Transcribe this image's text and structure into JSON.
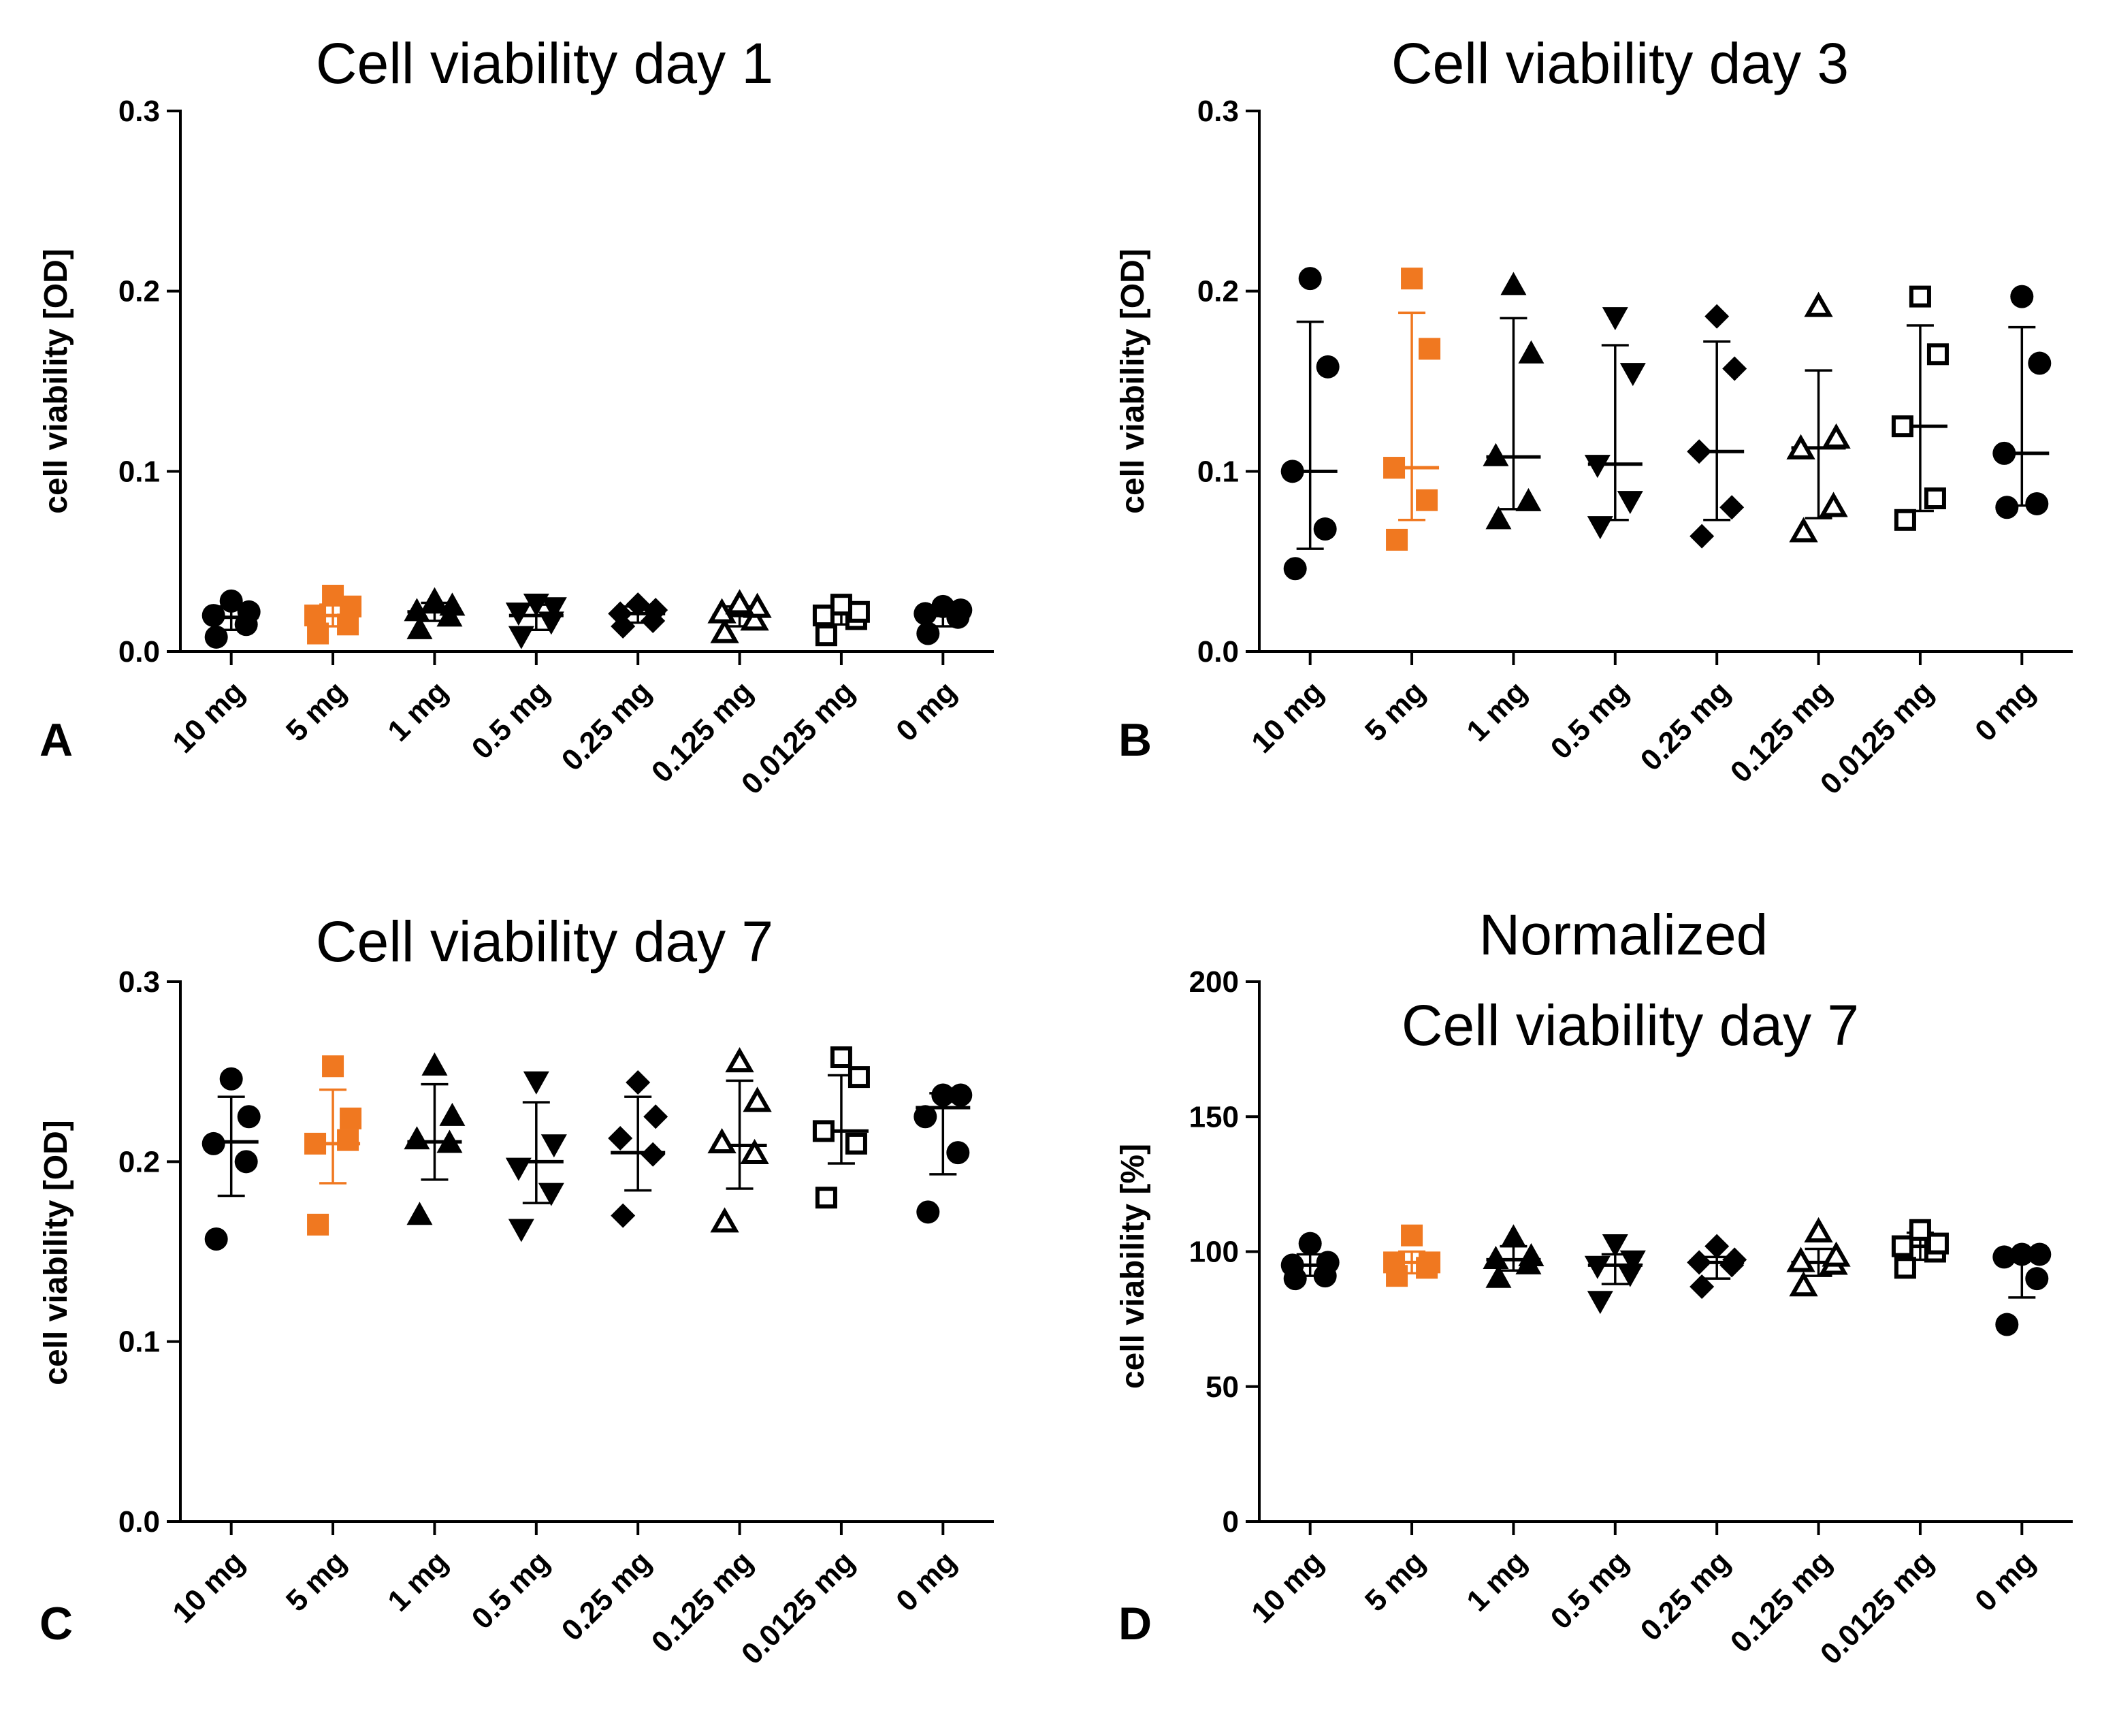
{
  "figure": {
    "colors": {
      "default": "#000000",
      "highlight": "#f07820"
    },
    "highlight_category": "5 mg"
  },
  "chart_data": [
    {
      "id": "A",
      "type": "scatter",
      "panel_label": "A",
      "title": "Cell viability day 1",
      "ylabel": "cell viability [OD]",
      "xlabel": "",
      "ylim": [
        0,
        0.3
      ],
      "yticks": [
        "0.0",
        "0.1",
        "0.2",
        "0.3"
      ],
      "ytick_values": [
        0,
        0.1,
        0.2,
        0.3
      ],
      "categories": [
        "10 mg",
        "5 mg",
        "1 mg",
        "0.5 mg",
        "0.25 mg",
        "0.125 mg",
        "0.0125 mg",
        "0 mg"
      ],
      "markers": [
        "circle",
        "square",
        "triangle-up",
        "triangle-down",
        "diamond",
        "triangle-up-open",
        "square-open",
        "circle"
      ],
      "series": [
        {
          "name": "10 mg",
          "points": [
            0.008,
            0.015,
            0.02,
            0.022,
            0.028
          ],
          "mean": 0.019,
          "err_low": 0.012,
          "err_high": 0.025
        },
        {
          "name": "5 mg",
          "points": [
            0.01,
            0.015,
            0.02,
            0.025,
            0.031
          ],
          "mean": 0.02,
          "err_low": 0.014,
          "err_high": 0.026
        },
        {
          "name": "1 mg",
          "points": [
            0.012,
            0.019,
            0.022,
            0.025,
            0.028
          ],
          "mean": 0.022,
          "err_low": 0.017,
          "err_high": 0.027
        },
        {
          "name": "0.5 mg",
          "points": [
            0.009,
            0.017,
            0.022,
            0.025,
            0.027
          ],
          "mean": 0.02,
          "err_low": 0.012,
          "err_high": 0.026
        },
        {
          "name": "0.25 mg",
          "points": [
            0.014,
            0.017,
            0.021,
            0.023,
            0.026
          ],
          "mean": 0.021,
          "err_low": 0.016,
          "err_high": 0.025
        },
        {
          "name": "0.125 mg",
          "points": [
            0.01,
            0.017,
            0.021,
            0.024,
            0.026
          ],
          "mean": 0.02,
          "err_low": 0.014,
          "err_high": 0.025
        },
        {
          "name": "0.0125 mg",
          "points": [
            0.009,
            0.018,
            0.02,
            0.022,
            0.026
          ],
          "mean": 0.021,
          "err_low": 0.015,
          "err_high": 0.025
        },
        {
          "name": "0 mg",
          "points": [
            0.01,
            0.019,
            0.021,
            0.023,
            0.025
          ],
          "mean": 0.02,
          "err_low": 0.014,
          "err_high": 0.025
        }
      ]
    },
    {
      "id": "B",
      "type": "scatter",
      "panel_label": "B",
      "title": "Cell viability day 3",
      "ylabel": "cell viability [OD]",
      "xlabel": "",
      "ylim": [
        0,
        0.3
      ],
      "yticks": [
        "0.0",
        "0.1",
        "0.2",
        "0.3"
      ],
      "ytick_values": [
        0,
        0.1,
        0.2,
        0.3
      ],
      "categories": [
        "10 mg",
        "5 mg",
        "1 mg",
        "0.5 mg",
        "0.25 mg",
        "0.125 mg",
        "0.0125 mg",
        "0 mg"
      ],
      "markers": [
        "circle",
        "square",
        "triangle-up",
        "triangle-down",
        "diamond",
        "triangle-up-open",
        "square-open",
        "circle"
      ],
      "series": [
        {
          "name": "10 mg",
          "points": [
            0.046,
            0.068,
            0.1,
            0.158,
            0.207
          ],
          "mean": 0.1,
          "err_low": 0.057,
          "err_high": 0.183
        },
        {
          "name": "5 mg",
          "points": [
            0.062,
            0.084,
            0.102,
            0.168,
            0.207
          ],
          "mean": 0.102,
          "err_low": 0.073,
          "err_high": 0.188
        },
        {
          "name": "1 mg",
          "points": [
            0.073,
            0.083,
            0.108,
            0.165,
            0.203
          ],
          "mean": 0.108,
          "err_low": 0.079,
          "err_high": 0.185
        },
        {
          "name": "0.5 mg",
          "points": [
            0.07,
            0.084,
            0.104,
            0.155,
            0.186
          ],
          "mean": 0.104,
          "err_low": 0.073,
          "err_high": 0.17
        },
        {
          "name": "0.25 mg",
          "points": [
            0.064,
            0.08,
            0.111,
            0.157,
            0.186
          ],
          "mean": 0.111,
          "err_low": 0.073,
          "err_high": 0.172
        },
        {
          "name": "0.125 mg",
          "points": [
            0.066,
            0.08,
            0.112,
            0.118,
            0.191
          ],
          "mean": 0.113,
          "err_low": 0.074,
          "err_high": 0.156
        },
        {
          "name": "0.0125 mg",
          "points": [
            0.073,
            0.085,
            0.125,
            0.165,
            0.197
          ],
          "mean": 0.125,
          "err_low": 0.078,
          "err_high": 0.181
        },
        {
          "name": "0 mg",
          "points": [
            0.08,
            0.082,
            0.11,
            0.16,
            0.197
          ],
          "mean": 0.11,
          "err_low": 0.081,
          "err_high": 0.18
        }
      ]
    },
    {
      "id": "C",
      "type": "scatter",
      "panel_label": "C",
      "title": "Cell viability day 7",
      "ylabel": "cell viability [OD]",
      "xlabel": "",
      "ylim": [
        0,
        0.3
      ],
      "yticks": [
        "0.0",
        "0.1",
        "0.2",
        "0.3"
      ],
      "ytick_values": [
        0,
        0.1,
        0.2,
        0.3
      ],
      "categories": [
        "10 mg",
        "5 mg",
        "1 mg",
        "0.5 mg",
        "0.25 mg",
        "0.125 mg",
        "0.0125 mg",
        "0 mg"
      ],
      "markers": [
        "circle",
        "square",
        "triangle-up",
        "triangle-down",
        "diamond",
        "triangle-up-open",
        "square-open",
        "circle"
      ],
      "series": [
        {
          "name": "10 mg",
          "points": [
            0.157,
            0.2,
            0.21,
            0.225,
            0.246
          ],
          "mean": 0.211,
          "err_low": 0.181,
          "err_high": 0.236
        },
        {
          "name": "5 mg",
          "points": [
            0.165,
            0.212,
            0.21,
            0.224,
            0.253
          ],
          "mean": 0.21,
          "err_low": 0.188,
          "err_high": 0.24
        },
        {
          "name": "1 mg",
          "points": [
            0.17,
            0.21,
            0.212,
            0.225,
            0.253
          ],
          "mean": 0.211,
          "err_low": 0.19,
          "err_high": 0.243
        },
        {
          "name": "0.5 mg",
          "points": [
            0.163,
            0.183,
            0.197,
            0.21,
            0.245
          ],
          "mean": 0.2,
          "err_low": 0.177,
          "err_high": 0.233
        },
        {
          "name": "0.25 mg",
          "points": [
            0.17,
            0.204,
            0.213,
            0.225,
            0.244
          ],
          "mean": 0.205,
          "err_low": 0.184,
          "err_high": 0.236
        },
        {
          "name": "0.125 mg",
          "points": [
            0.166,
            0.204,
            0.21,
            0.233,
            0.255
          ],
          "mean": 0.209,
          "err_low": 0.185,
          "err_high": 0.245
        },
        {
          "name": "0.0125 mg",
          "points": [
            0.18,
            0.21,
            0.217,
            0.247,
            0.258
          ],
          "mean": 0.217,
          "err_low": 0.199,
          "err_high": 0.248
        },
        {
          "name": "0 mg",
          "points": [
            0.172,
            0.205,
            0.225,
            0.237,
            0.237
          ],
          "mean": 0.23,
          "err_low": 0.193,
          "err_high": 0.238
        }
      ]
    },
    {
      "id": "D",
      "type": "scatter",
      "panel_label": "D",
      "title": "Normalized",
      "title_line2": "Cell viability day 7",
      "ylabel": "cell viability [%]",
      "xlabel": "",
      "ylim": [
        0,
        200
      ],
      "yticks": [
        "0",
        "50",
        "100",
        "150",
        "200"
      ],
      "ytick_values": [
        0,
        50,
        100,
        150,
        200
      ],
      "categories": [
        "10 mg",
        "5 mg",
        "1 mg",
        "0.5 mg",
        "0.25 mg",
        "0.125 mg",
        "0.0125 mg",
        "0 mg"
      ],
      "markers": [
        "circle",
        "square",
        "triangle-up",
        "triangle-down",
        "diamond",
        "triangle-up-open",
        "square-open",
        "circle"
      ],
      "series": [
        {
          "name": "10 mg",
          "points": [
            90,
            91,
            95,
            96,
            103
          ],
          "mean": 95,
          "err_low": 91,
          "err_high": 99
        },
        {
          "name": "5 mg",
          "points": [
            91,
            94,
            96,
            96,
            106
          ],
          "mean": 96,
          "err_low": 92,
          "err_high": 100
        },
        {
          "name": "1 mg",
          "points": [
            90,
            95,
            97,
            98,
            105
          ],
          "mean": 97,
          "err_low": 93,
          "err_high": 102
        },
        {
          "name": "0.5 mg",
          "points": [
            82,
            92,
            95,
            97,
            103
          ],
          "mean": 95,
          "err_low": 88,
          "err_high": 99
        },
        {
          "name": "0.25 mg",
          "points": [
            87,
            95,
            96,
            97,
            102
          ],
          "mean": 96,
          "err_low": 90,
          "err_high": 98
        },
        {
          "name": "0.125 mg",
          "points": [
            87,
            95,
            96,
            98,
            107
          ],
          "mean": 96,
          "err_low": 91,
          "err_high": 101
        },
        {
          "name": "0.0125 mg",
          "points": [
            94,
            100,
            102,
            103,
            108
          ],
          "mean": 102,
          "err_low": 97,
          "err_high": 107
        },
        {
          "name": "0 mg",
          "points": [
            73,
            90,
            98,
            99,
            99
          ],
          "mean": 98,
          "err_low": 83,
          "err_high": 99
        }
      ]
    }
  ]
}
